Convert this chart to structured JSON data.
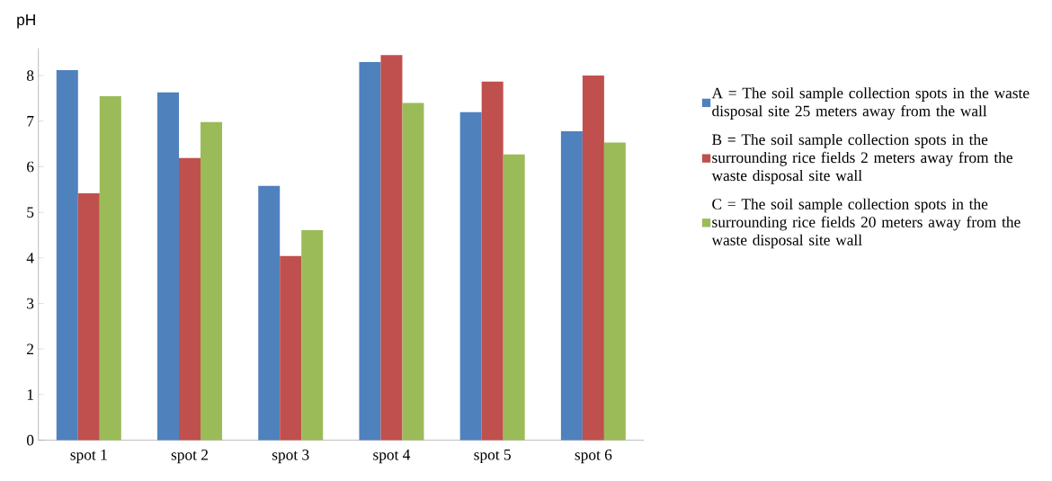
{
  "chart_data": {
    "type": "bar",
    "ylabel": "pH",
    "categories": [
      "spot 1",
      "spot 2",
      "spot 3",
      "spot 4",
      "spot 5",
      "spot 6"
    ],
    "series": [
      {
        "name": "A = The soil sample collection spots in the waste disposal site 25 meters away from the wall",
        "color": "#4f81bd",
        "values": [
          8.12,
          7.63,
          5.58,
          8.3,
          7.2,
          6.78
        ]
      },
      {
        "name": "B = The soil sample collection spots in the surrounding rice fields 2 meters away from the waste disposal site wall",
        "color": "#c0504d",
        "values": [
          5.42,
          6.19,
          4.04,
          8.45,
          7.87,
          8.0
        ]
      },
      {
        "name": "C = The soil sample collection spots in the surrounding rice fields 20 meters away from the waste disposal site wall",
        "color": "#9bbb59",
        "values": [
          7.55,
          6.98,
          4.61,
          7.4,
          6.27,
          6.53
        ]
      }
    ],
    "ylim": [
      0,
      8.6
    ],
    "yticks": [
      0,
      1,
      2,
      3,
      4,
      5,
      6,
      7,
      8
    ],
    "grid": false,
    "legend": "right"
  }
}
